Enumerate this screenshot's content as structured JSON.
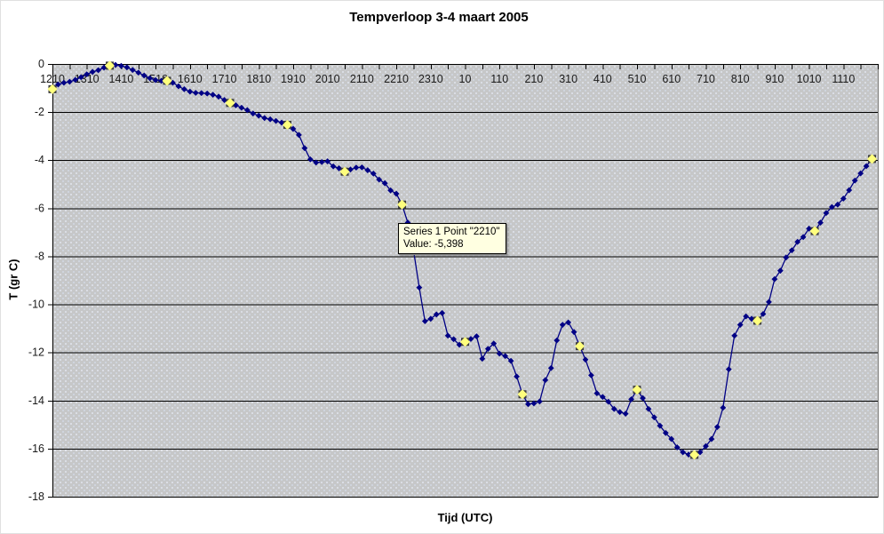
{
  "tooltip": {
    "line1": "Series 1 Point \"2210\"",
    "line2": "Value: -5,398"
  },
  "chart_data": {
    "type": "line",
    "title": "Tempverloop 3-4 maart 2005",
    "xlabel": "Tijd (UTC)",
    "ylabel": "T (gr C)",
    "ylim": [
      -18,
      0
    ],
    "grid": true,
    "y_tick_labels": [
      "0",
      "-2",
      "-4",
      "-6",
      "-8",
      "-10",
      "-12",
      "-14",
      "-16",
      "-18"
    ],
    "y_tick_values": [
      0,
      -2,
      -4,
      -6,
      -8,
      -10,
      -12,
      -14,
      -16,
      -18
    ],
    "x_tick_labels": [
      "1210",
      "1310",
      "1410",
      "1510",
      "1610",
      "1710",
      "1810",
      "1910",
      "2010",
      "2110",
      "2210",
      "2310",
      "10",
      "110",
      "210",
      "310",
      "410",
      "510",
      "610",
      "710",
      "810",
      "910",
      "1010",
      "1110"
    ],
    "points_per_hour_label": 6,
    "minor_tick_every_points": 3,
    "series": [
      {
        "name": "Series 1",
        "color": "#000085",
        "values": [
          -1.05,
          -0.85,
          -0.78,
          -0.74,
          -0.66,
          -0.55,
          -0.43,
          -0.33,
          -0.26,
          -0.15,
          -0.07,
          -0.04,
          -0.08,
          -0.14,
          -0.25,
          -0.36,
          -0.48,
          -0.59,
          -0.67,
          -0.7,
          -0.7,
          -0.78,
          -0.93,
          -1.05,
          -1.15,
          -1.2,
          -1.21,
          -1.23,
          -1.28,
          -1.36,
          -1.5,
          -1.62,
          -1.72,
          -1.82,
          -1.92,
          -2.06,
          -2.15,
          -2.25,
          -2.3,
          -2.37,
          -2.44,
          -2.53,
          -2.7,
          -2.95,
          -3.5,
          -3.97,
          -4.1,
          -4.08,
          -4.05,
          -4.26,
          -4.34,
          -4.48,
          -4.39,
          -4.31,
          -4.3,
          -4.42,
          -4.56,
          -4.81,
          -4.96,
          -5.26,
          -5.398,
          -5.85,
          -6.6,
          -7.74,
          -9.3,
          -10.7,
          -10.6,
          -10.42,
          -10.36,
          -11.3,
          -11.45,
          -11.68,
          -11.56,
          -11.44,
          -11.33,
          -12.26,
          -11.85,
          -11.63,
          -12.05,
          -12.15,
          -12.35,
          -13.0,
          -13.74,
          -14.15,
          -14.12,
          -14.04,
          -13.15,
          -12.65,
          -11.5,
          -10.85,
          -10.75,
          -11.15,
          -11.74,
          -12.3,
          -12.95,
          -13.7,
          -13.85,
          -14.05,
          -14.35,
          -14.48,
          -14.55,
          -13.95,
          -13.55,
          -13.9,
          -14.35,
          -14.7,
          -15.05,
          -15.35,
          -15.6,
          -15.95,
          -16.15,
          -16.25,
          -16.26,
          -16.15,
          -15.9,
          -15.6,
          -15.1,
          -14.3,
          -12.7,
          -11.3,
          -10.85,
          -10.5,
          -10.6,
          -10.68,
          -10.4,
          -9.9,
          -8.95,
          -8.6,
          -8.05,
          -7.75,
          -7.4,
          -7.2,
          -6.85,
          -6.95,
          -6.6,
          -6.2,
          -5.95,
          -5.85,
          -5.6,
          -5.25,
          -4.85,
          -4.55,
          -4.25,
          -3.95
        ]
      }
    ],
    "highlight_indices": [
      0,
      10,
      20,
      31,
      41,
      51,
      61,
      72,
      82,
      92,
      102,
      112,
      123,
      133,
      143
    ],
    "tooltip_point": "2210",
    "tooltip_value": -5.398,
    "colors": {
      "line": "#000085",
      "marker": "#000085",
      "highlight_fill": "#ffff7d",
      "highlight_box": "#3c3c3c",
      "plot_background": "#c6c7c8",
      "gridline": "#000000",
      "tooltip_background": "#ffffe1",
      "text": "#1a1a1a"
    }
  }
}
